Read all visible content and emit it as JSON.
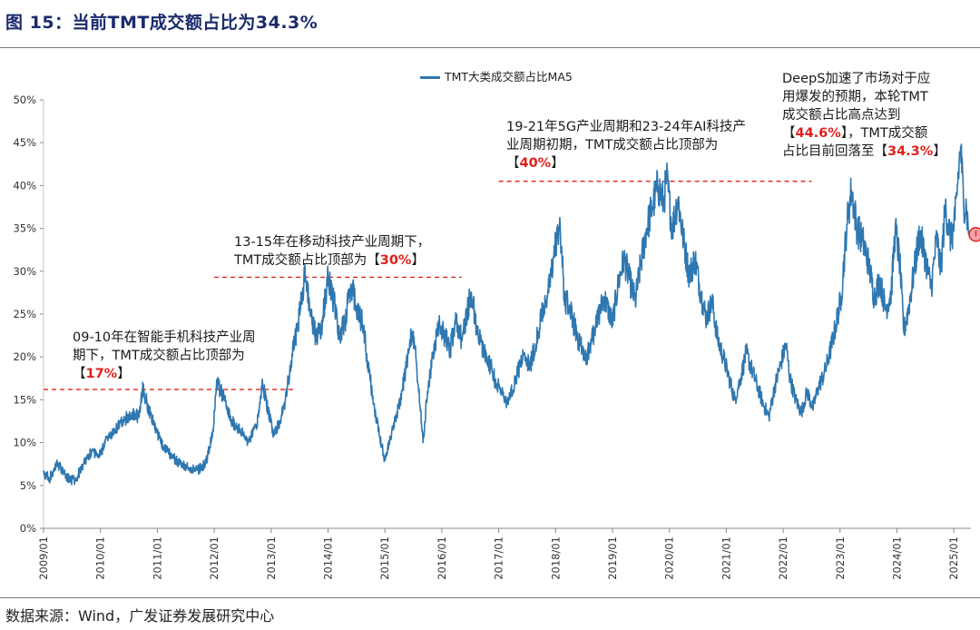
{
  "header": {
    "title": "图 15：当前TMT成交额占比为34.3%"
  },
  "footer": {
    "source": "数据来源：Wind，广发证券发展研究中心"
  },
  "colors": {
    "line": "#2e77b0",
    "threshold": "#e0201c",
    "highlight": "#e0201c",
    "title": "#1a2a6c"
  },
  "annotations": {
    "a1": {
      "line1": "09-10年在智能手机科技产业周",
      "line2": "期下，TMT成交额占比顶部为",
      "open": "【",
      "value": "17%",
      "close": "】"
    },
    "a2": {
      "line1": "13-15年在移动科技产业周期下，",
      "pre": "TMT成交额占比顶部为",
      "open": "【",
      "value": "30%",
      "close": "】"
    },
    "a3": {
      "line1": "19-21年5G产业周期和23-24年AI科技产",
      "line2": "业周期初期，TMT成交额占比顶部为",
      "open": "【",
      "value": "40%",
      "close": "】"
    },
    "a4": {
      "line1": "DeepS加速了市场对于应",
      "line2": "用爆发的预期，本轮TMT",
      "line3": "成交额占比高点达到",
      "open": "【",
      "value": "44.6%",
      "close": "】",
      "post": "，TMT成交额",
      "line5pre": "占比目前回落至",
      "open2": "【",
      "value2": "34.3%",
      "close2": "】"
    }
  },
  "chart_data": {
    "type": "line",
    "title": "",
    "xlabel": "",
    "ylabel": "",
    "ylim": [
      0,
      50
    ],
    "y_ticks": [
      "0%",
      "5%",
      "10%",
      "15%",
      "20%",
      "25%",
      "30%",
      "35%",
      "40%",
      "45%",
      "50%"
    ],
    "x_ticks": [
      "2009/01",
      "2010/01",
      "2011/01",
      "2012/01",
      "2013/01",
      "2014/01",
      "2015/01",
      "2016/01",
      "2017/01",
      "2018/01",
      "2019/01",
      "2020/01",
      "2021/01",
      "2022/01",
      "2023/01",
      "2024/01",
      "2025/01"
    ],
    "x_range": [
      2009.0,
      2025.3
    ],
    "legend": [
      "TMT大类成交额占比MA5"
    ],
    "series": [
      {
        "name": "TMT大类成交额占比MA5",
        "anchors": [
          [
            2009.0,
            6.5
          ],
          [
            2009.1,
            5.8
          ],
          [
            2009.25,
            7.5
          ],
          [
            2009.4,
            6.0
          ],
          [
            2009.55,
            5.5
          ],
          [
            2009.7,
            7.5
          ],
          [
            2009.85,
            9.0
          ],
          [
            2010.0,
            8.5
          ],
          [
            2010.1,
            10.5
          ],
          [
            2010.25,
            11.5
          ],
          [
            2010.4,
            12.5
          ],
          [
            2010.55,
            13.5
          ],
          [
            2010.68,
            13.0
          ],
          [
            2010.75,
            16.5
          ],
          [
            2010.82,
            14.5
          ],
          [
            2010.95,
            12.0
          ],
          [
            2011.1,
            9.5
          ],
          [
            2011.25,
            8.5
          ],
          [
            2011.4,
            7.5
          ],
          [
            2011.55,
            7.0
          ],
          [
            2011.7,
            6.8
          ],
          [
            2011.85,
            7.5
          ],
          [
            2011.97,
            11.0
          ],
          [
            2012.05,
            17.0
          ],
          [
            2012.15,
            15.5
          ],
          [
            2012.3,
            12.5
          ],
          [
            2012.45,
            11.5
          ],
          [
            2012.6,
            10.0
          ],
          [
            2012.75,
            12.0
          ],
          [
            2012.85,
            17.0
          ],
          [
            2012.95,
            13.5
          ],
          [
            2013.05,
            11.0
          ],
          [
            2013.15,
            12.5
          ],
          [
            2013.25,
            15.0
          ],
          [
            2013.35,
            19.5
          ],
          [
            2013.45,
            23.0
          ],
          [
            2013.55,
            27.5
          ],
          [
            2013.6,
            29.5
          ],
          [
            2013.7,
            25.0
          ],
          [
            2013.8,
            22.0
          ],
          [
            2013.9,
            24.0
          ],
          [
            2014.0,
            29.5
          ],
          [
            2014.1,
            26.5
          ],
          [
            2014.2,
            22.5
          ],
          [
            2014.3,
            24.0
          ],
          [
            2014.4,
            28.5
          ],
          [
            2014.5,
            26.0
          ],
          [
            2014.6,
            24.0
          ],
          [
            2014.7,
            19.5
          ],
          [
            2014.8,
            14.5
          ],
          [
            2014.9,
            11.0
          ],
          [
            2015.0,
            8.0
          ],
          [
            2015.1,
            10.5
          ],
          [
            2015.2,
            13.0
          ],
          [
            2015.3,
            16.0
          ],
          [
            2015.4,
            20.0
          ],
          [
            2015.48,
            23.0
          ],
          [
            2015.55,
            19.5
          ],
          [
            2015.62,
            14.0
          ],
          [
            2015.67,
            10.0
          ],
          [
            2015.75,
            16.0
          ],
          [
            2015.85,
            20.5
          ],
          [
            2015.95,
            23.5
          ],
          [
            2016.05,
            22.5
          ],
          [
            2016.15,
            21.0
          ],
          [
            2016.25,
            24.5
          ],
          [
            2016.35,
            22.0
          ],
          [
            2016.45,
            25.5
          ],
          [
            2016.52,
            27.5
          ],
          [
            2016.62,
            23.0
          ],
          [
            2016.75,
            20.5
          ],
          [
            2016.85,
            19.0
          ],
          [
            2016.95,
            17.0
          ],
          [
            2017.05,
            16.0
          ],
          [
            2017.15,
            14.5
          ],
          [
            2017.3,
            17.5
          ],
          [
            2017.45,
            20.5
          ],
          [
            2017.55,
            19.0
          ],
          [
            2017.65,
            21.5
          ],
          [
            2017.8,
            26.0
          ],
          [
            2017.9,
            28.5
          ],
          [
            2018.0,
            33.0
          ],
          [
            2018.08,
            35.5
          ],
          [
            2018.15,
            27.0
          ],
          [
            2018.25,
            25.5
          ],
          [
            2018.4,
            22.0
          ],
          [
            2018.55,
            20.0
          ],
          [
            2018.7,
            23.5
          ],
          [
            2018.85,
            27.0
          ],
          [
            2019.0,
            24.0
          ],
          [
            2019.1,
            28.5
          ],
          [
            2019.2,
            31.5
          ],
          [
            2019.3,
            29.0
          ],
          [
            2019.4,
            26.5
          ],
          [
            2019.5,
            31.0
          ],
          [
            2019.6,
            35.0
          ],
          [
            2019.7,
            37.5
          ],
          [
            2019.8,
            40.0
          ],
          [
            2019.9,
            38.0
          ],
          [
            2019.95,
            41.0
          ],
          [
            2020.05,
            35.0
          ],
          [
            2020.15,
            38.5
          ],
          [
            2020.25,
            33.5
          ],
          [
            2020.35,
            29.5
          ],
          [
            2020.45,
            31.5
          ],
          [
            2020.55,
            27.5
          ],
          [
            2020.65,
            24.5
          ],
          [
            2020.75,
            26.5
          ],
          [
            2020.85,
            22.0
          ],
          [
            2020.95,
            20.0
          ],
          [
            2021.05,
            17.5
          ],
          [
            2021.15,
            15.0
          ],
          [
            2021.25,
            17.5
          ],
          [
            2021.35,
            20.5
          ],
          [
            2021.45,
            18.5
          ],
          [
            2021.55,
            16.5
          ],
          [
            2021.65,
            14.5
          ],
          [
            2021.75,
            13.0
          ],
          [
            2021.85,
            16.5
          ],
          [
            2021.95,
            19.0
          ],
          [
            2022.05,
            21.5
          ],
          [
            2022.12,
            17.5
          ],
          [
            2022.22,
            15.0
          ],
          [
            2022.32,
            13.5
          ],
          [
            2022.42,
            16.0
          ],
          [
            2022.52,
            14.0
          ],
          [
            2022.62,
            16.5
          ],
          [
            2022.72,
            18.0
          ],
          [
            2022.82,
            20.5
          ],
          [
            2022.92,
            23.5
          ],
          [
            2023.02,
            27.0
          ],
          [
            2023.12,
            35.5
          ],
          [
            2023.2,
            39.5
          ],
          [
            2023.3,
            35.0
          ],
          [
            2023.4,
            33.5
          ],
          [
            2023.5,
            31.0
          ],
          [
            2023.6,
            27.0
          ],
          [
            2023.7,
            29.0
          ],
          [
            2023.8,
            25.5
          ],
          [
            2023.9,
            27.5
          ],
          [
            2023.97,
            35.0
          ],
          [
            2024.05,
            31.0
          ],
          [
            2024.12,
            23.0
          ],
          [
            2024.2,
            25.5
          ],
          [
            2024.3,
            30.0
          ],
          [
            2024.4,
            34.5
          ],
          [
            2024.5,
            31.5
          ],
          [
            2024.6,
            28.0
          ],
          [
            2024.7,
            34.0
          ],
          [
            2024.77,
            30.0
          ],
          [
            2024.85,
            37.5
          ],
          [
            2024.95,
            33.5
          ],
          [
            2025.02,
            36.0
          ],
          [
            2025.08,
            41.5
          ],
          [
            2025.12,
            44.6
          ],
          [
            2025.17,
            38.0
          ],
          [
            2025.22,
            37.5
          ],
          [
            2025.26,
            34.3
          ]
        ]
      }
    ],
    "thresholds": [
      {
        "value": 16.2,
        "from": 2009.0,
        "to": 2013.4,
        "label": "17%"
      },
      {
        "value": 29.3,
        "from": 2012.0,
        "to": 2016.35,
        "label": "30%"
      },
      {
        "value": 40.5,
        "from": 2017.0,
        "to": 2022.5,
        "label": "40%"
      }
    ],
    "marker": {
      "x": 2025.26,
      "y": 34.3,
      "label": "34.3%"
    }
  }
}
